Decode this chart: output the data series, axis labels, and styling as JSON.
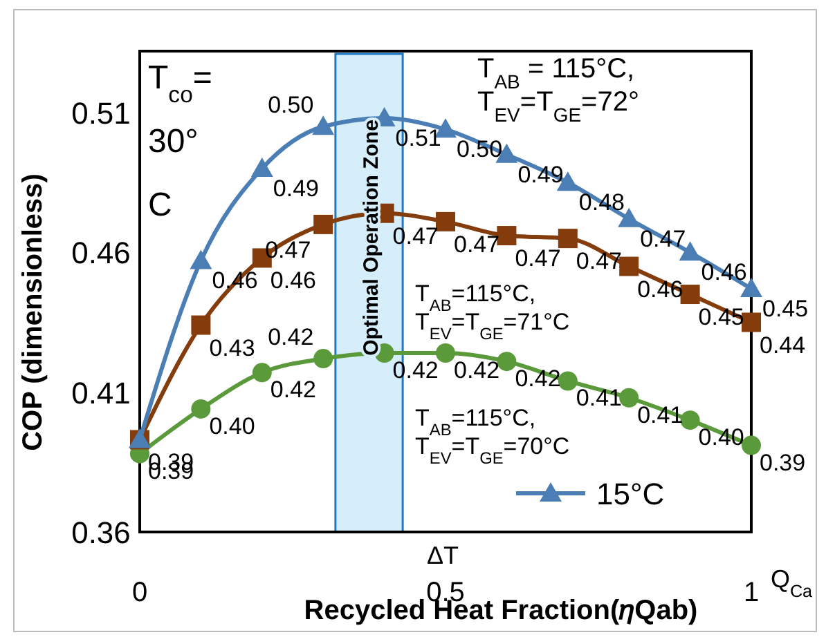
{
  "chart_data": {
    "type": "line",
    "xlabel": "Recycled Heat Fraction(𝜂Qab)",
    "ylabel": "COP (dimensionless)",
    "x": [
      0,
      0.1,
      0.2,
      0.3,
      0.4,
      0.5,
      0.6,
      0.7,
      0.8,
      0.9,
      1.0
    ],
    "xlim": [
      0,
      1
    ],
    "xticks": [
      0,
      0.5,
      1
    ],
    "ylim": [
      0.36,
      0.532
    ],
    "yticks": [
      0.36,
      0.41,
      0.46,
      0.51
    ],
    "series": [
      {
        "name": "15°C",
        "color": "#4a7eb5",
        "marker": "triangle",
        "values": [
          0.393,
          0.457,
          0.49,
          0.505,
          0.508,
          0.504,
          0.495,
          0.485,
          0.472,
          0.46,
          0.447
        ],
        "value_labels": [
          null,
          "0.46",
          "0.49",
          "0.50",
          "0.51",
          "0.50",
          "0.49",
          "0.48",
          "0.47",
          "0.46",
          "0.45"
        ]
      },
      {
        "color": "#843c0c",
        "marker": "square",
        "values": [
          0.393,
          0.434,
          0.458,
          0.47,
          0.474,
          0.471,
          0.466,
          0.465,
          0.455,
          0.445,
          0.435
        ],
        "value_labels": [
          "0.39",
          "0.43",
          "0.46",
          "0.47",
          "0.47",
          "0.47",
          "0.47",
          "0.47",
          "0.46",
          "0.45",
          "0.44"
        ]
      },
      {
        "color": "#5b9a3a",
        "marker": "circle",
        "values": [
          0.388,
          0.404,
          0.417,
          0.422,
          0.424,
          0.424,
          0.421,
          0.414,
          0.408,
          0.4,
          0.391
        ],
        "value_labels": [
          "0.39",
          "0.40",
          "0.42",
          "0.42",
          "0.42",
          "0.42",
          "0.42",
          "0.41",
          "0.41",
          "0.40",
          "0.39"
        ]
      }
    ],
    "bands": [
      {
        "axis": "x",
        "from": 0.32,
        "to": 0.43,
        "label": "Optimal Operation Zone",
        "color": "#d6eefa"
      }
    ],
    "annotations": [
      "T$_{co}$= 30° C",
      "T$_{AB}$ = 115°C, T$_{EV}$=T$_{GE}$=72°",
      "T$_{AB}$=115°C, T$_{EV}$=T$_{GE}$=71°C",
      "T$_{AB}$=115°C, T$_{EV}$=T$_{GE}$=70°C",
      "ΔT",
      "Q$_{Ca}$"
    ],
    "legend": "bottom right"
  }
}
